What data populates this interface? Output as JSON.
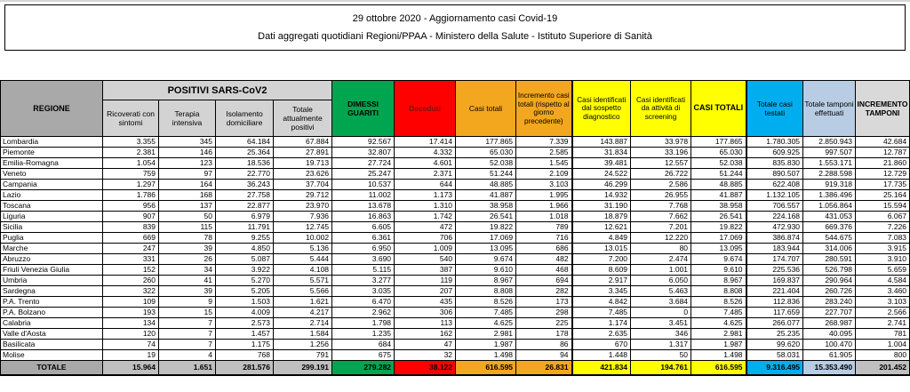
{
  "title": {
    "line1": "29 ottobre 2020 - Aggiornamento casi Covid-19",
    "line2": "Dati aggregati quotidiani Regioni/PPAA - Ministero della Salute - Istituto Superiore di Sanità"
  },
  "colors": {
    "green": "#00a550",
    "red": "#fe0000",
    "red_text": "#7e1010",
    "orange": "#f3a71e",
    "yellow": "#ffff00",
    "cyan": "#00aeef",
    "lavender": "#b8cce4",
    "header_gray": "#a9a9a9",
    "subheader_gray": "#d3d3d3",
    "light_gray": "#d9d9d9",
    "total_gray": "#bfbfbf"
  },
  "table": {
    "headers": {
      "regione": "REGIONE",
      "positivi_group": "POSITIVI SARS-CoV2",
      "sub": [
        "Ricoverati con sintomi",
        "Terapia intensiva",
        "Isolamento domiciliare",
        "Totale attualmente positivi"
      ],
      "dimessi": "DIMESSI GUARITI",
      "deceduti": "Deceduti",
      "casi_totali": "Casi totali",
      "incremento_casi": "Incremento casi totali (rispetto al giorno precedente)",
      "sospetto": "Casi identificati dal sospetto diagnostico",
      "screening": "Casi identificati da attività di screening",
      "casi_totali_2": "CASI TOTALI",
      "casi_testati": "Totale casi testati",
      "tamponi": "Totale tamponi effettuati",
      "incremento_tamponi": "INCREMENTO TAMPONI"
    },
    "rows": [
      {
        "regione": "Lombardia",
        "values": [
          "3.355",
          "345",
          "64.184",
          "67.884",
          "92.567",
          "17.414",
          "177.865",
          "7.339",
          "143.887",
          "33.978",
          "177.865",
          "1.780.305",
          "2.850.943",
          "42.684"
        ]
      },
      {
        "regione": "Piemonte",
        "values": [
          "2.381",
          "146",
          "25.364",
          "27.891",
          "32.807",
          "4.332",
          "65.030",
          "2.585",
          "31.834",
          "33.196",
          "65.030",
          "609.925",
          "997.507",
          "12.787"
        ]
      },
      {
        "regione": "Emilia-Romagna",
        "values": [
          "1.054",
          "123",
          "18.536",
          "19.713",
          "27.724",
          "4.601",
          "52.038",
          "1.545",
          "39.481",
          "12.557",
          "52.038",
          "835.830",
          "1.553.171",
          "21.860"
        ]
      },
      {
        "regione": "Veneto",
        "values": [
          "759",
          "97",
          "22.770",
          "23.626",
          "25.247",
          "2.371",
          "51.244",
          "2.109",
          "24.522",
          "26.722",
          "51.244",
          "890.507",
          "2.288.598",
          "12.729"
        ]
      },
      {
        "regione": "Campania",
        "values": [
          "1.297",
          "164",
          "36.243",
          "37.704",
          "10.537",
          "644",
          "48.885",
          "3.103",
          "46.299",
          "2.586",
          "48.885",
          "622.408",
          "919.318",
          "17.735"
        ]
      },
      {
        "regione": "Lazio",
        "values": [
          "1.786",
          "168",
          "27.758",
          "29.712",
          "11.002",
          "1.173",
          "41.887",
          "1.995",
          "14.932",
          "26.955",
          "41.887",
          "1.132.105",
          "1.386.496",
          "25.164"
        ]
      },
      {
        "regione": "Toscana",
        "values": [
          "956",
          "137",
          "22.877",
          "23.970",
          "13.678",
          "1.310",
          "38.958",
          "1.966",
          "31.190",
          "7.768",
          "38.958",
          "706.557",
          "1.056.864",
          "15.594"
        ]
      },
      {
        "regione": "Liguria",
        "values": [
          "907",
          "50",
          "6.979",
          "7.936",
          "16.863",
          "1.742",
          "26.541",
          "1.018",
          "18.879",
          "7.662",
          "26.541",
          "224.168",
          "431.053",
          "6.067"
        ]
      },
      {
        "regione": "Sicilia",
        "values": [
          "839",
          "115",
          "11.791",
          "12.745",
          "6.605",
          "472",
          "19.822",
          "789",
          "12.621",
          "7.201",
          "19.822",
          "472.930",
          "669.376",
          "7.226"
        ]
      },
      {
        "regione": "Puglia",
        "values": [
          "669",
          "78",
          "9.255",
          "10.002",
          "6.361",
          "706",
          "17.069",
          "716",
          "4.849",
          "12.220",
          "17.069",
          "386.874",
          "544.675",
          "7.083"
        ]
      },
      {
        "regione": "Marche",
        "values": [
          "247",
          "39",
          "4.850",
          "5.136",
          "6.950",
          "1.009",
          "13.095",
          "686",
          "13.015",
          "80",
          "13.095",
          "183.944",
          "314.006",
          "3.915"
        ]
      },
      {
        "regione": "Abruzzo",
        "values": [
          "331",
          "26",
          "5.087",
          "5.444",
          "3.690",
          "540",
          "9.674",
          "482",
          "7.200",
          "2.474",
          "9.674",
          "174.707",
          "280.591",
          "3.910"
        ]
      },
      {
        "regione": "Friuli Venezia Giulia",
        "values": [
          "152",
          "34",
          "3.922",
          "4.108",
          "5.115",
          "387",
          "9.610",
          "468",
          "8.609",
          "1.001",
          "9.610",
          "225.536",
          "526.798",
          "5.659"
        ]
      },
      {
        "regione": "Umbria",
        "values": [
          "260",
          "41",
          "5.270",
          "5.571",
          "3.277",
          "119",
          "8.967",
          "694",
          "2.917",
          "6.050",
          "8.967",
          "169.837",
          "290.964",
          "4.584"
        ]
      },
      {
        "regione": "Sardegna",
        "values": [
          "322",
          "39",
          "5.205",
          "5.566",
          "3.035",
          "207",
          "8.808",
          "282",
          "3.345",
          "5.463",
          "8.808",
          "221.404",
          "260.726",
          "3.460"
        ]
      },
      {
        "regione": "P.A. Trento",
        "values": [
          "109",
          "9",
          "1.503",
          "1.621",
          "6.470",
          "435",
          "8.526",
          "173",
          "4.842",
          "3.684",
          "8.526",
          "112.836",
          "283.240",
          "3.103"
        ]
      },
      {
        "regione": "P.A. Bolzano",
        "values": [
          "193",
          "15",
          "4.009",
          "4.217",
          "2.962",
          "306",
          "7.485",
          "298",
          "7.485",
          "0",
          "7.485",
          "117.659",
          "227.707",
          "2.566"
        ]
      },
      {
        "regione": "Calabria",
        "values": [
          "134",
          "7",
          "2.573",
          "2.714",
          "1.798",
          "113",
          "4.625",
          "225",
          "1.174",
          "3.451",
          "4.625",
          "266.077",
          "268.987",
          "2.741"
        ]
      },
      {
        "regione": "Valle d'Aosta",
        "values": [
          "120",
          "7",
          "1.457",
          "1.584",
          "1.235",
          "162",
          "2.981",
          "178",
          "2.635",
          "346",
          "2.981",
          "25.235",
          "40.095",
          "781"
        ]
      },
      {
        "regione": "Basilicata",
        "values": [
          "74",
          "7",
          "1.175",
          "1.256",
          "684",
          "47",
          "1.987",
          "86",
          "670",
          "1.317",
          "1.987",
          "99.620",
          "100.470",
          "1.004"
        ]
      },
      {
        "regione": "Molise",
        "values": [
          "19",
          "4",
          "768",
          "791",
          "675",
          "32",
          "1.498",
          "94",
          "1.448",
          "50",
          "1.498",
          "58.031",
          "61.905",
          "800"
        ]
      }
    ],
    "total": {
      "regione": "TOTALE",
      "values": [
        "15.964",
        "1.651",
        "281.576",
        "299.191",
        "279.282",
        "38.122",
        "616.595",
        "26.831",
        "421.834",
        "194.761",
        "616.595",
        "9.316.495",
        "15.353.490",
        "201.452"
      ]
    }
  }
}
